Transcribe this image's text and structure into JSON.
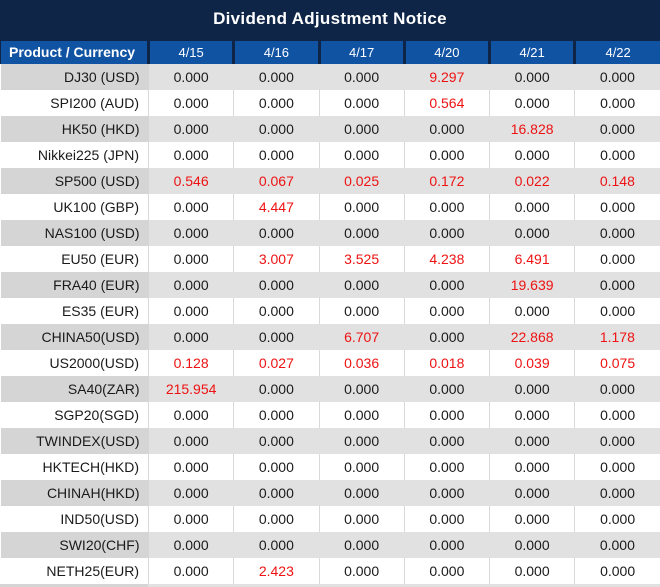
{
  "title": "Dividend Adjustment Notice",
  "colors": {
    "title_bar_navy": "#0e2547",
    "header_blue": "#1153a3",
    "row_gray_product": "#d5d5d5",
    "row_gray_value": "#e1e1e1",
    "text_dark": "#1a1a1a",
    "value_red": "#ee1212"
  },
  "table": {
    "columns": [
      "Product / Currency",
      "4/15",
      "4/16",
      "4/17",
      "4/20",
      "4/21",
      "4/22"
    ],
    "zero_value": "0.000",
    "rows": [
      {
        "product": "DJ30 (USD)",
        "values": [
          "0.000",
          "0.000",
          "0.000",
          "9.297",
          "0.000",
          "0.000"
        ]
      },
      {
        "product": "SPI200 (AUD)",
        "values": [
          "0.000",
          "0.000",
          "0.000",
          "0.564",
          "0.000",
          "0.000"
        ]
      },
      {
        "product": "HK50 (HKD)",
        "values": [
          "0.000",
          "0.000",
          "0.000",
          "0.000",
          "16.828",
          "0.000"
        ]
      },
      {
        "product": "Nikkei225 (JPN)",
        "values": [
          "0.000",
          "0.000",
          "0.000",
          "0.000",
          "0.000",
          "0.000"
        ]
      },
      {
        "product": "SP500 (USD)",
        "values": [
          "0.546",
          "0.067",
          "0.025",
          "0.172",
          "0.022",
          "0.148"
        ]
      },
      {
        "product": "UK100 (GBP)",
        "values": [
          "0.000",
          "4.447",
          "0.000",
          "0.000",
          "0.000",
          "0.000"
        ]
      },
      {
        "product": "NAS100 (USD)",
        "values": [
          "0.000",
          "0.000",
          "0.000",
          "0.000",
          "0.000",
          "0.000"
        ]
      },
      {
        "product": "EU50 (EUR)",
        "values": [
          "0.000",
          "3.007",
          "3.525",
          "4.238",
          "6.491",
          "0.000"
        ]
      },
      {
        "product": "FRA40 (EUR)",
        "values": [
          "0.000",
          "0.000",
          "0.000",
          "0.000",
          "19.639",
          "0.000"
        ]
      },
      {
        "product": "ES35 (EUR)",
        "values": [
          "0.000",
          "0.000",
          "0.000",
          "0.000",
          "0.000",
          "0.000"
        ]
      },
      {
        "product": "CHINA50(USD)",
        "values": [
          "0.000",
          "0.000",
          "6.707",
          "0.000",
          "22.868",
          "1.178"
        ]
      },
      {
        "product": "US2000(USD)",
        "values": [
          "0.128",
          "0.027",
          "0.036",
          "0.018",
          "0.039",
          "0.075"
        ]
      },
      {
        "product": "SA40(ZAR)",
        "values": [
          "215.954",
          "0.000",
          "0.000",
          "0.000",
          "0.000",
          "0.000"
        ]
      },
      {
        "product": "SGP20(SGD)",
        "values": [
          "0.000",
          "0.000",
          "0.000",
          "0.000",
          "0.000",
          "0.000"
        ]
      },
      {
        "product": "TWINDEX(USD)",
        "values": [
          "0.000",
          "0.000",
          "0.000",
          "0.000",
          "0.000",
          "0.000"
        ]
      },
      {
        "product": "HKTECH(HKD)",
        "values": [
          "0.000",
          "0.000",
          "0.000",
          "0.000",
          "0.000",
          "0.000"
        ]
      },
      {
        "product": "CHINAH(HKD)",
        "values": [
          "0.000",
          "0.000",
          "0.000",
          "0.000",
          "0.000",
          "0.000"
        ]
      },
      {
        "product": "IND50(USD)",
        "values": [
          "0.000",
          "0.000",
          "0.000",
          "0.000",
          "0.000",
          "0.000"
        ]
      },
      {
        "product": "SWI20(CHF)",
        "values": [
          "0.000",
          "0.000",
          "0.000",
          "0.000",
          "0.000",
          "0.000"
        ]
      },
      {
        "product": "NETH25(EUR)",
        "values": [
          "0.000",
          "2.423",
          "0.000",
          "0.000",
          "0.000",
          "0.000"
        ]
      }
    ]
  }
}
